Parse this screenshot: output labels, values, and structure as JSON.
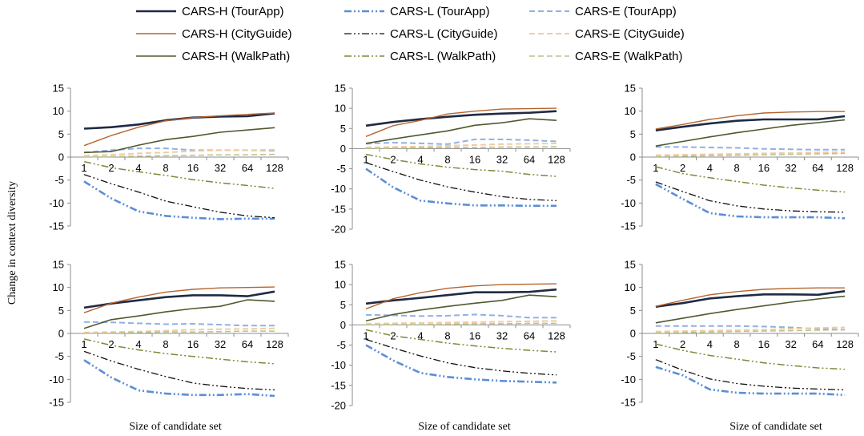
{
  "legend": {
    "placement": "top",
    "entries": [
      {
        "name": "CARS-H (TourApp)",
        "color": "#1f2a44",
        "dash": "solid",
        "width": 2.6
      },
      {
        "name": "CARS-L (TourApp)",
        "color": "#5b8ed6",
        "dash": "dashdotdot",
        "width": 2.6
      },
      {
        "name": "CARS-E (TourApp)",
        "color": "#8fb1e3",
        "dash": "dash",
        "width": 2.0
      },
      {
        "name": "CARS-H (CityGuide)",
        "color": "#b5652f",
        "dash": "solid",
        "width": 1.4
      },
      {
        "name": "CARS-L (CityGuide)",
        "color": "#111111",
        "dash": "dashdotdot",
        "width": 1.3
      },
      {
        "name": "CARS-E (CityGuide)",
        "color": "#f5c9a0",
        "dash": "dash",
        "width": 2.0
      },
      {
        "name": "CARS-H (WalkPath)",
        "color": "#4f5a2e",
        "dash": "solid",
        "width": 1.6
      },
      {
        "name": "CARS-L (WalkPath)",
        "color": "#7a8a3a",
        "dash": "dashdotdot",
        "width": 1.5
      },
      {
        "name": "CARS-E (WalkPath)",
        "color": "#b7c48a",
        "dash": "dash",
        "width": 1.5
      }
    ]
  },
  "axes": {
    "ylabel": "Change in context diversity",
    "xlabel": "Size of candidate set"
  },
  "chart_data": [
    {
      "type": "line",
      "grid": false,
      "categories": [
        "1",
        "2",
        "4",
        "8",
        "16",
        "32",
        "64",
        "128"
      ],
      "ylim": [
        -15,
        15
      ],
      "yticks": [
        15,
        10,
        5,
        0,
        -5,
        -10,
        -15
      ],
      "series": [
        {
          "name": "CARS-H (TourApp)",
          "values": [
            6.2,
            6.5,
            7.1,
            8.0,
            8.6,
            8.8,
            8.9,
            9.5
          ]
        },
        {
          "name": "CARS-L (TourApp)",
          "values": [
            -5.3,
            -9.0,
            -11.8,
            -12.8,
            -13.2,
            -13.5,
            -13.4,
            -13.4
          ]
        },
        {
          "name": "CARS-E (TourApp)",
          "values": [
            1.0,
            1.5,
            1.9,
            1.9,
            1.5,
            1.5,
            1.5,
            1.4
          ]
        },
        {
          "name": "CARS-H (CityGuide)",
          "values": [
            2.5,
            4.7,
            6.5,
            7.9,
            8.6,
            9.0,
            9.3,
            9.6
          ]
        },
        {
          "name": "CARS-L (CityGuide)",
          "values": [
            -3.8,
            -5.8,
            -7.6,
            -9.6,
            -10.8,
            -12.0,
            -12.8,
            -13.2
          ]
        },
        {
          "name": "CARS-E (CityGuide)",
          "values": [
            0.3,
            0.5,
            0.8,
            1.0,
            1.3,
            1.5,
            1.5,
            1.6
          ]
        },
        {
          "name": "CARS-H (WalkPath)",
          "values": [
            1.0,
            1.2,
            2.6,
            3.8,
            4.5,
            5.4,
            5.9,
            6.4
          ]
        },
        {
          "name": "CARS-L (WalkPath)",
          "values": [
            -1.0,
            -2.3,
            -3.2,
            -4.0,
            -4.9,
            -5.6,
            -6.2,
            -6.8
          ]
        },
        {
          "name": "CARS-E (WalkPath)",
          "values": [
            0.0,
            0.1,
            0.2,
            0.3,
            0.4,
            0.5,
            0.5,
            0.6
          ]
        }
      ]
    },
    {
      "type": "line",
      "grid": false,
      "categories": [
        "1",
        "2",
        "4",
        "8",
        "16",
        "32",
        "64",
        "128"
      ],
      "ylim": [
        -20,
        15
      ],
      "yticks": [
        15,
        10,
        5,
        0,
        -5,
        -10,
        -15,
        -20
      ],
      "series": [
        {
          "name": "CARS-H (TourApp)",
          "values": [
            5.7,
            6.6,
            7.3,
            7.9,
            8.4,
            8.7,
            8.9,
            9.3
          ]
        },
        {
          "name": "CARS-L (TourApp)",
          "values": [
            -5.0,
            -9.6,
            -12.9,
            -13.6,
            -14.1,
            -14.1,
            -14.2,
            -14.2
          ]
        },
        {
          "name": "CARS-E (TourApp)",
          "values": [
            1.2,
            1.5,
            1.3,
            1.1,
            2.3,
            2.3,
            2.1,
            1.8
          ]
        },
        {
          "name": "CARS-H (CityGuide)",
          "values": [
            3.0,
            5.7,
            7.0,
            8.6,
            9.3,
            9.8,
            9.9,
            10.0
          ]
        },
        {
          "name": "CARS-L (CityGuide)",
          "values": [
            -3.5,
            -5.7,
            -7.8,
            -9.5,
            -10.8,
            -11.9,
            -12.6,
            -12.9
          ]
        },
        {
          "name": "CARS-E (CityGuide)",
          "values": [
            0.3,
            0.4,
            0.5,
            0.7,
            0.9,
            1.1,
            1.2,
            1.3
          ]
        },
        {
          "name": "CARS-H (WalkPath)",
          "values": [
            1.3,
            2.4,
            3.4,
            4.4,
            5.8,
            6.4,
            7.4,
            7.0
          ]
        },
        {
          "name": "CARS-L (WalkPath)",
          "values": [
            -1.4,
            -2.7,
            -3.8,
            -4.6,
            -5.2,
            -5.6,
            -6.4,
            -6.9
          ]
        },
        {
          "name": "CARS-E (WalkPath)",
          "values": [
            0.0,
            0.1,
            0.2,
            0.3,
            0.3,
            0.4,
            0.4,
            0.5
          ]
        }
      ]
    },
    {
      "type": "line",
      "grid": false,
      "categories": [
        "1",
        "2",
        "4",
        "8",
        "16",
        "32",
        "64",
        "128"
      ],
      "ylim": [
        -15,
        15
      ],
      "yticks": [
        15,
        10,
        5,
        0,
        -5,
        -10,
        -15
      ],
      "series": [
        {
          "name": "CARS-H (TourApp)",
          "values": [
            5.8,
            6.6,
            7.3,
            7.9,
            8.2,
            8.2,
            8.2,
            8.9
          ]
        },
        {
          "name": "CARS-L (TourApp)",
          "values": [
            -5.9,
            -9.1,
            -12.2,
            -12.9,
            -13.1,
            -13.1,
            -13.1,
            -13.3
          ]
        },
        {
          "name": "CARS-E (TourApp)",
          "values": [
            2.2,
            2.2,
            2.1,
            2.0,
            1.8,
            1.7,
            1.6,
            1.6
          ]
        },
        {
          "name": "CARS-H (CityGuide)",
          "values": [
            6.1,
            7.1,
            8.2,
            9.0,
            9.6,
            9.8,
            9.9,
            9.9
          ]
        },
        {
          "name": "CARS-L (CityGuide)",
          "values": [
            -5.4,
            -7.5,
            -9.5,
            -10.6,
            -11.3,
            -11.7,
            -11.9,
            -12.0
          ]
        },
        {
          "name": "CARS-E (CityGuide)",
          "values": [
            0.4,
            0.5,
            0.6,
            0.7,
            0.8,
            0.9,
            1.0,
            1.1
          ]
        },
        {
          "name": "CARS-H (WalkPath)",
          "values": [
            2.4,
            3.4,
            4.4,
            5.3,
            6.1,
            6.9,
            7.5,
            8.1
          ]
        },
        {
          "name": "CARS-L (WalkPath)",
          "values": [
            -2.1,
            -3.6,
            -4.5,
            -5.3,
            -6.1,
            -6.7,
            -7.2,
            -7.6
          ]
        },
        {
          "name": "CARS-E (WalkPath)",
          "values": [
            0.1,
            0.2,
            0.3,
            0.4,
            0.5,
            0.6,
            0.7,
            0.8
          ]
        }
      ]
    },
    {
      "type": "line",
      "grid": false,
      "categories": [
        "1",
        "2",
        "4",
        "8",
        "16",
        "32",
        "64",
        "128"
      ],
      "ylim": [
        -15,
        15
      ],
      "yticks": [
        15,
        10,
        5,
        0,
        -5,
        -10,
        -15
      ],
      "series": [
        {
          "name": "CARS-H (TourApp)",
          "values": [
            5.6,
            6.5,
            7.2,
            7.9,
            8.3,
            8.3,
            8.1,
            9.1
          ]
        },
        {
          "name": "CARS-L (TourApp)",
          "values": [
            -5.8,
            -9.6,
            -12.4,
            -13.1,
            -13.4,
            -13.4,
            -13.2,
            -13.6
          ]
        },
        {
          "name": "CARS-E (TourApp)",
          "values": [
            2.5,
            2.4,
            2.2,
            2.0,
            2.1,
            1.9,
            1.7,
            1.7
          ]
        },
        {
          "name": "CARS-H (CityGuide)",
          "values": [
            4.5,
            6.6,
            7.9,
            9.0,
            9.6,
            9.9,
            10.0,
            10.1
          ]
        },
        {
          "name": "CARS-L (CityGuide)",
          "values": [
            -3.9,
            -6.0,
            -7.8,
            -9.4,
            -10.8,
            -11.5,
            -12.0,
            -12.3
          ]
        },
        {
          "name": "CARS-E (CityGuide)",
          "values": [
            0.2,
            0.3,
            0.4,
            0.6,
            0.8,
            0.9,
            1.0,
            1.1
          ]
        },
        {
          "name": "CARS-H (WalkPath)",
          "values": [
            1.1,
            3.0,
            3.8,
            4.7,
            5.4,
            5.9,
            7.3,
            7.0
          ]
        },
        {
          "name": "CARS-L (WalkPath)",
          "values": [
            -1.2,
            -2.6,
            -3.6,
            -4.4,
            -5.0,
            -5.6,
            -6.2,
            -6.6
          ]
        },
        {
          "name": "CARS-E (WalkPath)",
          "values": [
            0.0,
            0.1,
            0.2,
            0.3,
            0.3,
            0.4,
            0.5,
            0.5
          ]
        }
      ]
    },
    {
      "type": "line",
      "grid": false,
      "categories": [
        "1",
        "2",
        "4",
        "8",
        "16",
        "32",
        "64",
        "128"
      ],
      "ylim": [
        -20,
        15
      ],
      "yticks": [
        15,
        10,
        5,
        0,
        -5,
        -10,
        -15,
        -20
      ],
      "series": [
        {
          "name": "CARS-H (TourApp)",
          "values": [
            5.3,
            6.1,
            6.7,
            7.4,
            8.1,
            8.1,
            8.2,
            8.8
          ]
        },
        {
          "name": "CARS-L (TourApp)",
          "values": [
            -5.0,
            -8.8,
            -11.9,
            -12.9,
            -13.5,
            -13.9,
            -14.1,
            -14.3
          ]
        },
        {
          "name": "CARS-E (TourApp)",
          "values": [
            2.5,
            2.4,
            2.2,
            2.3,
            2.6,
            2.3,
            1.8,
            1.8
          ]
        },
        {
          "name": "CARS-H (CityGuide)",
          "values": [
            4.0,
            6.5,
            8.0,
            9.1,
            9.7,
            10.0,
            10.1,
            10.2
          ]
        },
        {
          "name": "CARS-L (CityGuide)",
          "values": [
            -3.6,
            -5.7,
            -7.7,
            -9.4,
            -10.6,
            -11.4,
            -12.0,
            -12.4
          ]
        },
        {
          "name": "CARS-E (CityGuide)",
          "values": [
            0.3,
            0.4,
            0.5,
            0.6,
            0.7,
            0.8,
            0.9,
            1.0
          ]
        },
        {
          "name": "CARS-H (WalkPath)",
          "values": [
            1.0,
            2.6,
            3.7,
            4.6,
            5.4,
            6.1,
            7.4,
            7.0
          ]
        },
        {
          "name": "CARS-L (WalkPath)",
          "values": [
            -1.2,
            -2.7,
            -3.6,
            -4.5,
            -5.2,
            -5.8,
            -6.3,
            -6.7
          ]
        },
        {
          "name": "CARS-E (WalkPath)",
          "values": [
            0.0,
            0.1,
            0.1,
            0.2,
            0.3,
            0.3,
            0.4,
            0.4
          ]
        }
      ]
    },
    {
      "type": "line",
      "grid": false,
      "categories": [
        "1",
        "2",
        "4",
        "8",
        "16",
        "32",
        "64",
        "128"
      ],
      "ylim": [
        -15,
        15
      ],
      "yticks": [
        15,
        10,
        5,
        0,
        -5,
        -10,
        -15
      ],
      "series": [
        {
          "name": "CARS-H (TourApp)",
          "values": [
            5.8,
            6.6,
            7.6,
            8.1,
            8.5,
            8.5,
            8.4,
            9.2
          ]
        },
        {
          "name": "CARS-L (TourApp)",
          "values": [
            -7.3,
            -9.1,
            -12.2,
            -12.9,
            -13.1,
            -13.1,
            -13.1,
            -13.4
          ]
        },
        {
          "name": "CARS-E (TourApp)",
          "values": [
            1.6,
            1.6,
            1.6,
            1.6,
            1.5,
            1.3,
            1.0,
            0.8
          ]
        },
        {
          "name": "CARS-H (CityGuide)",
          "values": [
            5.9,
            7.2,
            8.4,
            9.1,
            9.6,
            9.8,
            9.9,
            9.9
          ]
        },
        {
          "name": "CARS-L (CityGuide)",
          "values": [
            -5.7,
            -8.0,
            -9.9,
            -10.9,
            -11.5,
            -11.9,
            -12.1,
            -12.3
          ]
        },
        {
          "name": "CARS-E (CityGuide)",
          "values": [
            0.4,
            0.5,
            0.6,
            0.7,
            0.8,
            1.0,
            1.2,
            1.3
          ]
        },
        {
          "name": "CARS-H (WalkPath)",
          "values": [
            2.3,
            3.3,
            4.3,
            5.2,
            6.0,
            6.8,
            7.5,
            8.1
          ]
        },
        {
          "name": "CARS-L (WalkPath)",
          "values": [
            -2.3,
            -3.7,
            -4.8,
            -5.6,
            -6.4,
            -7.0,
            -7.5,
            -7.8
          ]
        },
        {
          "name": "CARS-E (WalkPath)",
          "values": [
            0.1,
            0.2,
            0.3,
            0.4,
            0.5,
            0.6,
            0.7,
            0.8
          ]
        }
      ]
    }
  ]
}
